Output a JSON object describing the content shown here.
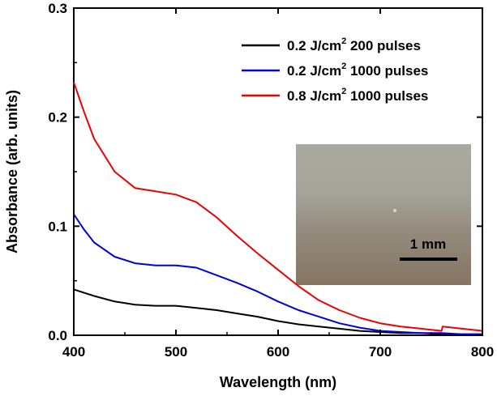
{
  "chart_data": {
    "type": "line",
    "title": "",
    "xlabel": "Wavelength (nm)",
    "ylabel": "Absorbance (arb. units)",
    "xlim": [
      400,
      800
    ],
    "ylim": [
      0.0,
      0.3
    ],
    "x_ticks": [
      400,
      500,
      600,
      700,
      800
    ],
    "y_ticks": [
      "0.0",
      "0.1",
      "0.2",
      "0.3"
    ],
    "legend_position": "top-right",
    "series": [
      {
        "name": "0.2 J/cm2 200 pulses",
        "label_main": "0.2 J/cm",
        "label_sup": "2",
        "label_tail": " 200 pulses",
        "color": "#000000",
        "x": [
          400,
          420,
          440,
          460,
          480,
          500,
          520,
          540,
          560,
          580,
          600,
          620,
          640,
          660,
          680,
          700,
          720,
          740,
          760,
          780,
          800
        ],
        "values": [
          0.042,
          0.036,
          0.031,
          0.028,
          0.027,
          0.027,
          0.025,
          0.023,
          0.02,
          0.017,
          0.013,
          0.01,
          0.008,
          0.006,
          0.004,
          0.003,
          0.002,
          0.002,
          0.001,
          0.001,
          0.001
        ]
      },
      {
        "name": "0.2 J/cm2 1000 pulses",
        "label_main": "0.2 J/cm",
        "label_sup": "2",
        "label_tail": " 1000 pulses",
        "color": "#0000dd",
        "x": [
          400,
          410,
          420,
          440,
          460,
          480,
          500,
          520,
          540,
          560,
          580,
          600,
          620,
          640,
          660,
          680,
          700,
          720,
          740,
          760,
          780,
          800
        ],
        "values": [
          0.111,
          0.097,
          0.085,
          0.072,
          0.066,
          0.064,
          0.064,
          0.062,
          0.055,
          0.048,
          0.04,
          0.031,
          0.023,
          0.017,
          0.011,
          0.007,
          0.004,
          0.003,
          0.002,
          0.002,
          0.001,
          0.001
        ]
      },
      {
        "name": "0.8 J/cm2 1000 pulses",
        "label_main": "0.8 J/cm",
        "label_sup": "2",
        "label_tail": " 1000 pulses",
        "color": "#ee0000",
        "x": [
          400,
          410,
          420,
          440,
          460,
          480,
          500,
          520,
          540,
          560,
          580,
          600,
          620,
          640,
          660,
          680,
          700,
          720,
          740,
          750,
          760,
          761,
          780,
          800
        ],
        "values": [
          0.232,
          0.205,
          0.18,
          0.15,
          0.135,
          0.132,
          0.129,
          0.122,
          0.108,
          0.091,
          0.075,
          0.06,
          0.045,
          0.032,
          0.023,
          0.016,
          0.011,
          0.008,
          0.006,
          0.005,
          0.004,
          0.008,
          0.006,
          0.004
        ]
      }
    ],
    "inset": {
      "description": "sample photo",
      "scale_bar_label": "1 mm"
    }
  }
}
